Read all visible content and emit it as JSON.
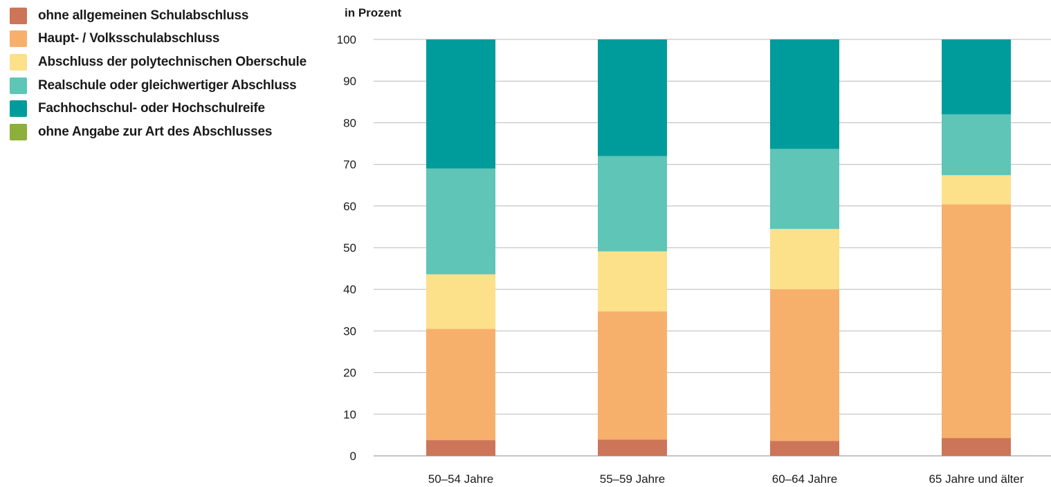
{
  "chart_data": {
    "type": "bar",
    "stacked": true,
    "ylabel": "in Prozent",
    "ylim": [
      0,
      100
    ],
    "yticks": [
      0,
      10,
      20,
      30,
      40,
      50,
      60,
      70,
      80,
      90,
      100
    ],
    "grid": true,
    "legend_position": "top-left",
    "categories": [
      "50–54 Jahre",
      "55–59 Jahre",
      "60–64 Jahre",
      "65 Jahre und älter"
    ],
    "series": [
      {
        "name": "ohne allgemeinen Schulabschluss",
        "color": "#cd7558",
        "values": [
          3.8,
          3.9,
          3.6,
          4.3
        ]
      },
      {
        "name": "Haupt- / Volksschulabschluss",
        "color": "#f7b06c",
        "values": [
          26.7,
          30.8,
          36.4,
          56.1
        ]
      },
      {
        "name": "Abschluss der polytechnischen Oberschule",
        "color": "#fce08a",
        "values": [
          13.1,
          14.4,
          14.5,
          7.0
        ]
      },
      {
        "name": "Realschule oder gleichwertiger Abschluss",
        "color": "#5ec5b7",
        "values": [
          25.4,
          22.9,
          19.2,
          14.6
        ]
      },
      {
        "name": "Fachhochschul- oder Hochschulreife",
        "color": "#009c9b",
        "values": [
          31.0,
          28.0,
          26.3,
          18.0
        ]
      },
      {
        "name": "ohne Angabe zur Art des Abschlusses",
        "color": "#8db03a",
        "values": [
          0,
          0,
          0,
          0
        ]
      }
    ]
  }
}
